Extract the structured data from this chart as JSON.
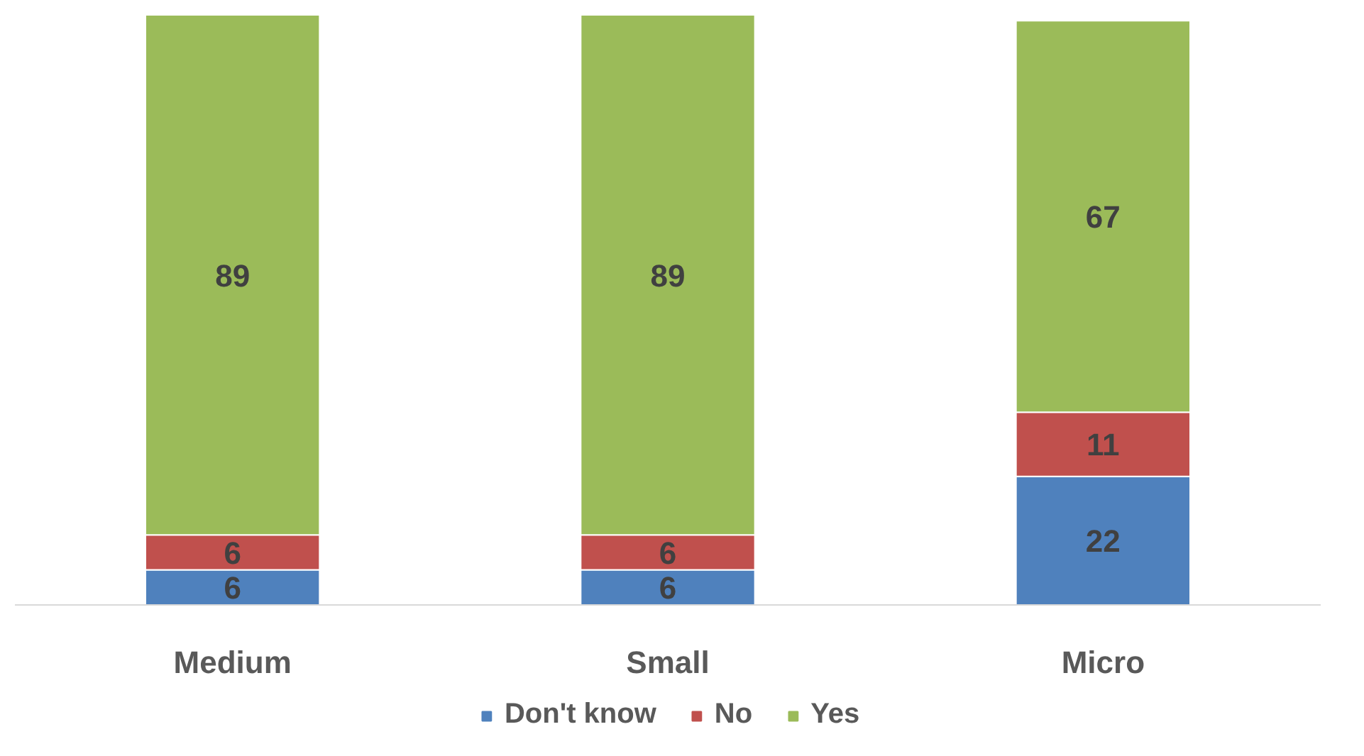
{
  "chart_data": {
    "type": "bar",
    "stacked": true,
    "categories": [
      "Medium",
      "Small",
      "Micro"
    ],
    "series": [
      {
        "name": "Don't know",
        "color": "#4f81bd",
        "values": [
          6,
          6,
          22
        ]
      },
      {
        "name": "No",
        "color": "#c0504d",
        "values": [
          6,
          6,
          11
        ]
      },
      {
        "name": "Yes",
        "color": "#9bbb59",
        "values": [
          89,
          89,
          67
        ]
      }
    ],
    "data_labels": true,
    "legend": "bottom",
    "tick_labels": "x"
  }
}
